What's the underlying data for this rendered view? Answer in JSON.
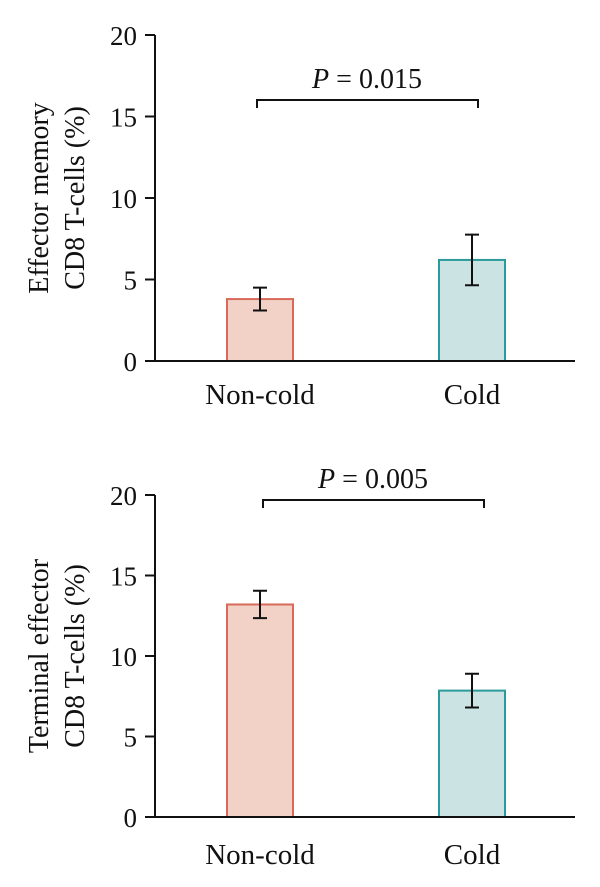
{
  "chart_data": [
    {
      "type": "bar",
      "categories": [
        "Non-cold",
        "Cold"
      ],
      "values": [
        3.8,
        6.2
      ],
      "errors": [
        0.7,
        1.55
      ],
      "ylabel_line1": "Effector memory",
      "ylabel_line2": "CD8 T-cells (%)",
      "ylim": [
        0,
        20
      ],
      "yticks": [
        "0",
        "5",
        "10",
        "15",
        "20"
      ],
      "annotation": {
        "p_symbol": "P",
        "p_text": " = 0.015"
      },
      "colors": {
        "fills": [
          "#f2d2c6",
          "#cce3e3"
        ],
        "strokes": [
          "#d9695a",
          "#2c9a9a"
        ]
      }
    },
    {
      "type": "bar",
      "categories": [
        "Non-cold",
        "Cold"
      ],
      "values": [
        13.2,
        7.85
      ],
      "errors": [
        0.85,
        1.05
      ],
      "ylabel_line1": "Terminal effector",
      "ylabel_line2": "CD8 T-cells (%)",
      "ylim": [
        0,
        20
      ],
      "yticks": [
        "0",
        "5",
        "10",
        "15",
        "20"
      ],
      "annotation": {
        "p_symbol": "P",
        "p_text": " = 0.005"
      },
      "colors": {
        "fills": [
          "#f2d2c6",
          "#cce3e3"
        ],
        "strokes": [
          "#d9695a",
          "#2c9a9a"
        ]
      }
    }
  ]
}
